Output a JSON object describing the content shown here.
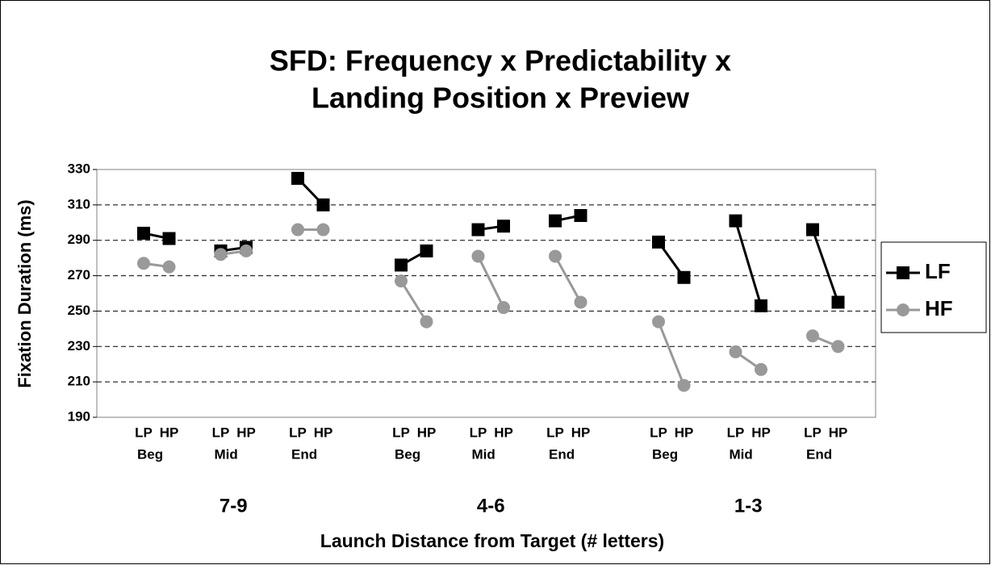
{
  "chart_data": {
    "type": "line",
    "title": [
      "SFD: Frequency x Predictability x",
      "Landing Position x Preview"
    ],
    "y_label": "Fixation Duration (ms)",
    "x_label": "Launch Distance from Target (# letters)",
    "categories": [
      "LP",
      "HP",
      "LP",
      "HP",
      "LP",
      "HP",
      "LP",
      "HP",
      "LP",
      "HP",
      "LP",
      "HP",
      "LP",
      "HP",
      "LP",
      "HP",
      "LP",
      "HP"
    ],
    "subcategories": [
      "Beg",
      "Mid",
      "End",
      "Beg",
      "Mid",
      "End",
      "Beg",
      "Mid",
      "End"
    ],
    "groups": [
      "7-9",
      "4-6",
      "1-3"
    ],
    "series": [
      {
        "name": "LF",
        "color": "#000000",
        "marker": "square",
        "values": [
          294,
          291,
          284,
          286,
          325,
          310,
          276,
          284,
          296,
          298,
          301,
          304,
          289,
          269,
          301,
          253,
          296,
          255
        ]
      },
      {
        "name": "HF",
        "color": "#999999",
        "marker": "circle",
        "values": [
          277,
          275,
          282,
          284,
          296,
          296,
          267,
          244,
          281,
          252,
          281,
          255,
          244,
          208,
          227,
          217,
          236,
          230
        ]
      }
    ],
    "ylim": [
      190,
      330
    ],
    "yticks": [
      190,
      210,
      230,
      250,
      270,
      290,
      310,
      330
    ],
    "grid": true
  }
}
